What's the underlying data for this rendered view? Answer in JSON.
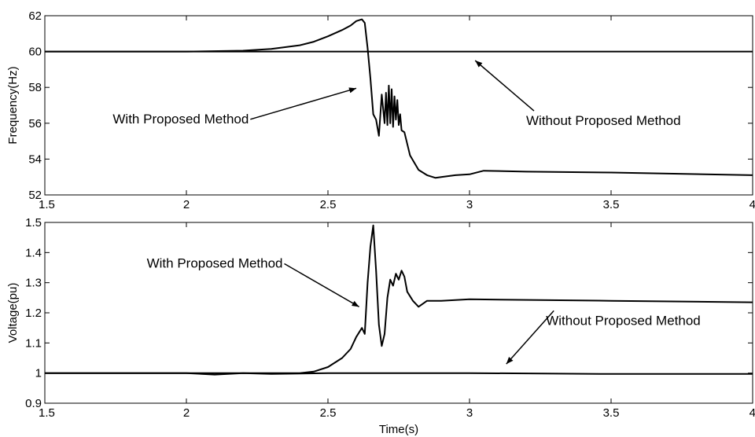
{
  "chart_data": [
    {
      "type": "line",
      "title": "",
      "xlabel": "",
      "ylabel": "Frequency(Hz)",
      "xlim": [
        1.5,
        4
      ],
      "ylim": [
        52,
        62
      ],
      "xticks": [
        "1.5",
        "2",
        "2.5",
        "3",
        "3.5",
        "4"
      ],
      "yticks": [
        "52",
        "54",
        "56",
        "58",
        "60",
        "62"
      ],
      "grid": false,
      "series": [
        {
          "x": [
            1.5,
            2.0,
            2.2,
            2.3,
            2.4,
            2.45,
            2.5,
            2.55,
            2.58,
            2.6,
            2.62,
            2.63,
            2.64,
            2.65,
            2.66,
            2.67,
            2.68,
            2.69,
            2.7,
            2.705,
            2.71,
            2.715,
            2.72,
            2.725,
            2.73,
            2.735,
            2.74,
            2.745,
            2.75,
            2.755,
            2.76,
            2.77,
            2.79,
            2.82,
            2.85,
            2.88,
            2.9,
            2.95,
            3.0,
            3.05,
            3.2,
            3.5,
            4.0
          ],
          "y": [
            60,
            60,
            60.05,
            60.15,
            60.35,
            60.55,
            60.85,
            61.2,
            61.45,
            61.7,
            61.8,
            61.6,
            60.2,
            58.5,
            56.5,
            56.2,
            55.3,
            57.6,
            56.0,
            57.7,
            55.9,
            58.1,
            56.0,
            57.9,
            55.8,
            57.5,
            56.2,
            57.3,
            55.9,
            56.5,
            55.6,
            55.5,
            54.2,
            53.4,
            53.1,
            52.95,
            53.0,
            53.1,
            53.15,
            53.35,
            53.3,
            53.25,
            53.1
          ]
        },
        {
          "x": [
            1.5,
            4.0
          ],
          "y": [
            60,
            60
          ]
        }
      ],
      "annotations": [
        {
          "text": "With Proposed Method",
          "text_x": 1.74,
          "text_y": 56.0,
          "target_x": 2.6,
          "target_y": 57.95
        },
        {
          "text": "Without Proposed Method",
          "text_x": 3.2,
          "text_y": 55.9,
          "target_x": 3.02,
          "target_y": 59.5
        }
      ]
    },
    {
      "type": "line",
      "title": "",
      "xlabel": "Time(s)",
      "ylabel": "Voltage(pu)",
      "xlim": [
        1.5,
        4
      ],
      "ylim": [
        0.9,
        1.5
      ],
      "xticks": [
        "1.5",
        "2",
        "2.5",
        "3",
        "3.5",
        "4"
      ],
      "yticks": [
        "0.9",
        "1",
        "1.1",
        "1.2",
        "1.3",
        "1.4",
        "1.5"
      ],
      "grid": false,
      "series": [
        {
          "x": [
            1.5,
            2.0,
            2.3,
            2.4,
            2.45,
            2.5,
            2.55,
            2.58,
            2.6,
            2.62,
            2.63,
            2.64,
            2.65,
            2.66,
            2.67,
            2.68,
            2.69,
            2.7,
            2.71,
            2.72,
            2.73,
            2.74,
            2.75,
            2.76,
            2.77,
            2.78,
            2.8,
            2.82,
            2.85,
            2.9,
            3.0,
            3.5,
            4.0
          ],
          "y": [
            1.0,
            1.0,
            1.0,
            1.0,
            1.005,
            1.02,
            1.05,
            1.08,
            1.12,
            1.15,
            1.13,
            1.3,
            1.42,
            1.49,
            1.34,
            1.16,
            1.09,
            1.13,
            1.25,
            1.31,
            1.29,
            1.33,
            1.31,
            1.34,
            1.32,
            1.27,
            1.24,
            1.22,
            1.24,
            1.24,
            1.245,
            1.24,
            1.235
          ]
        },
        {
          "x": [
            1.5,
            2.0,
            2.1,
            2.2,
            2.3,
            2.5,
            3.0,
            3.5,
            4.0
          ],
          "y": [
            1.0,
            1.0,
            0.995,
            1.0,
            0.997,
            1.0,
            1.0,
            0.997,
            0.997
          ]
        }
      ],
      "annotations": [
        {
          "text": "With Proposed Method",
          "text_x": 1.86,
          "text_y": 1.35,
          "target_x": 2.61,
          "target_y": 1.22
        },
        {
          "text": "Without Proposed Method",
          "text_x": 3.27,
          "text_y": 1.16,
          "target_x": 3.13,
          "target_y": 1.03
        }
      ]
    }
  ]
}
